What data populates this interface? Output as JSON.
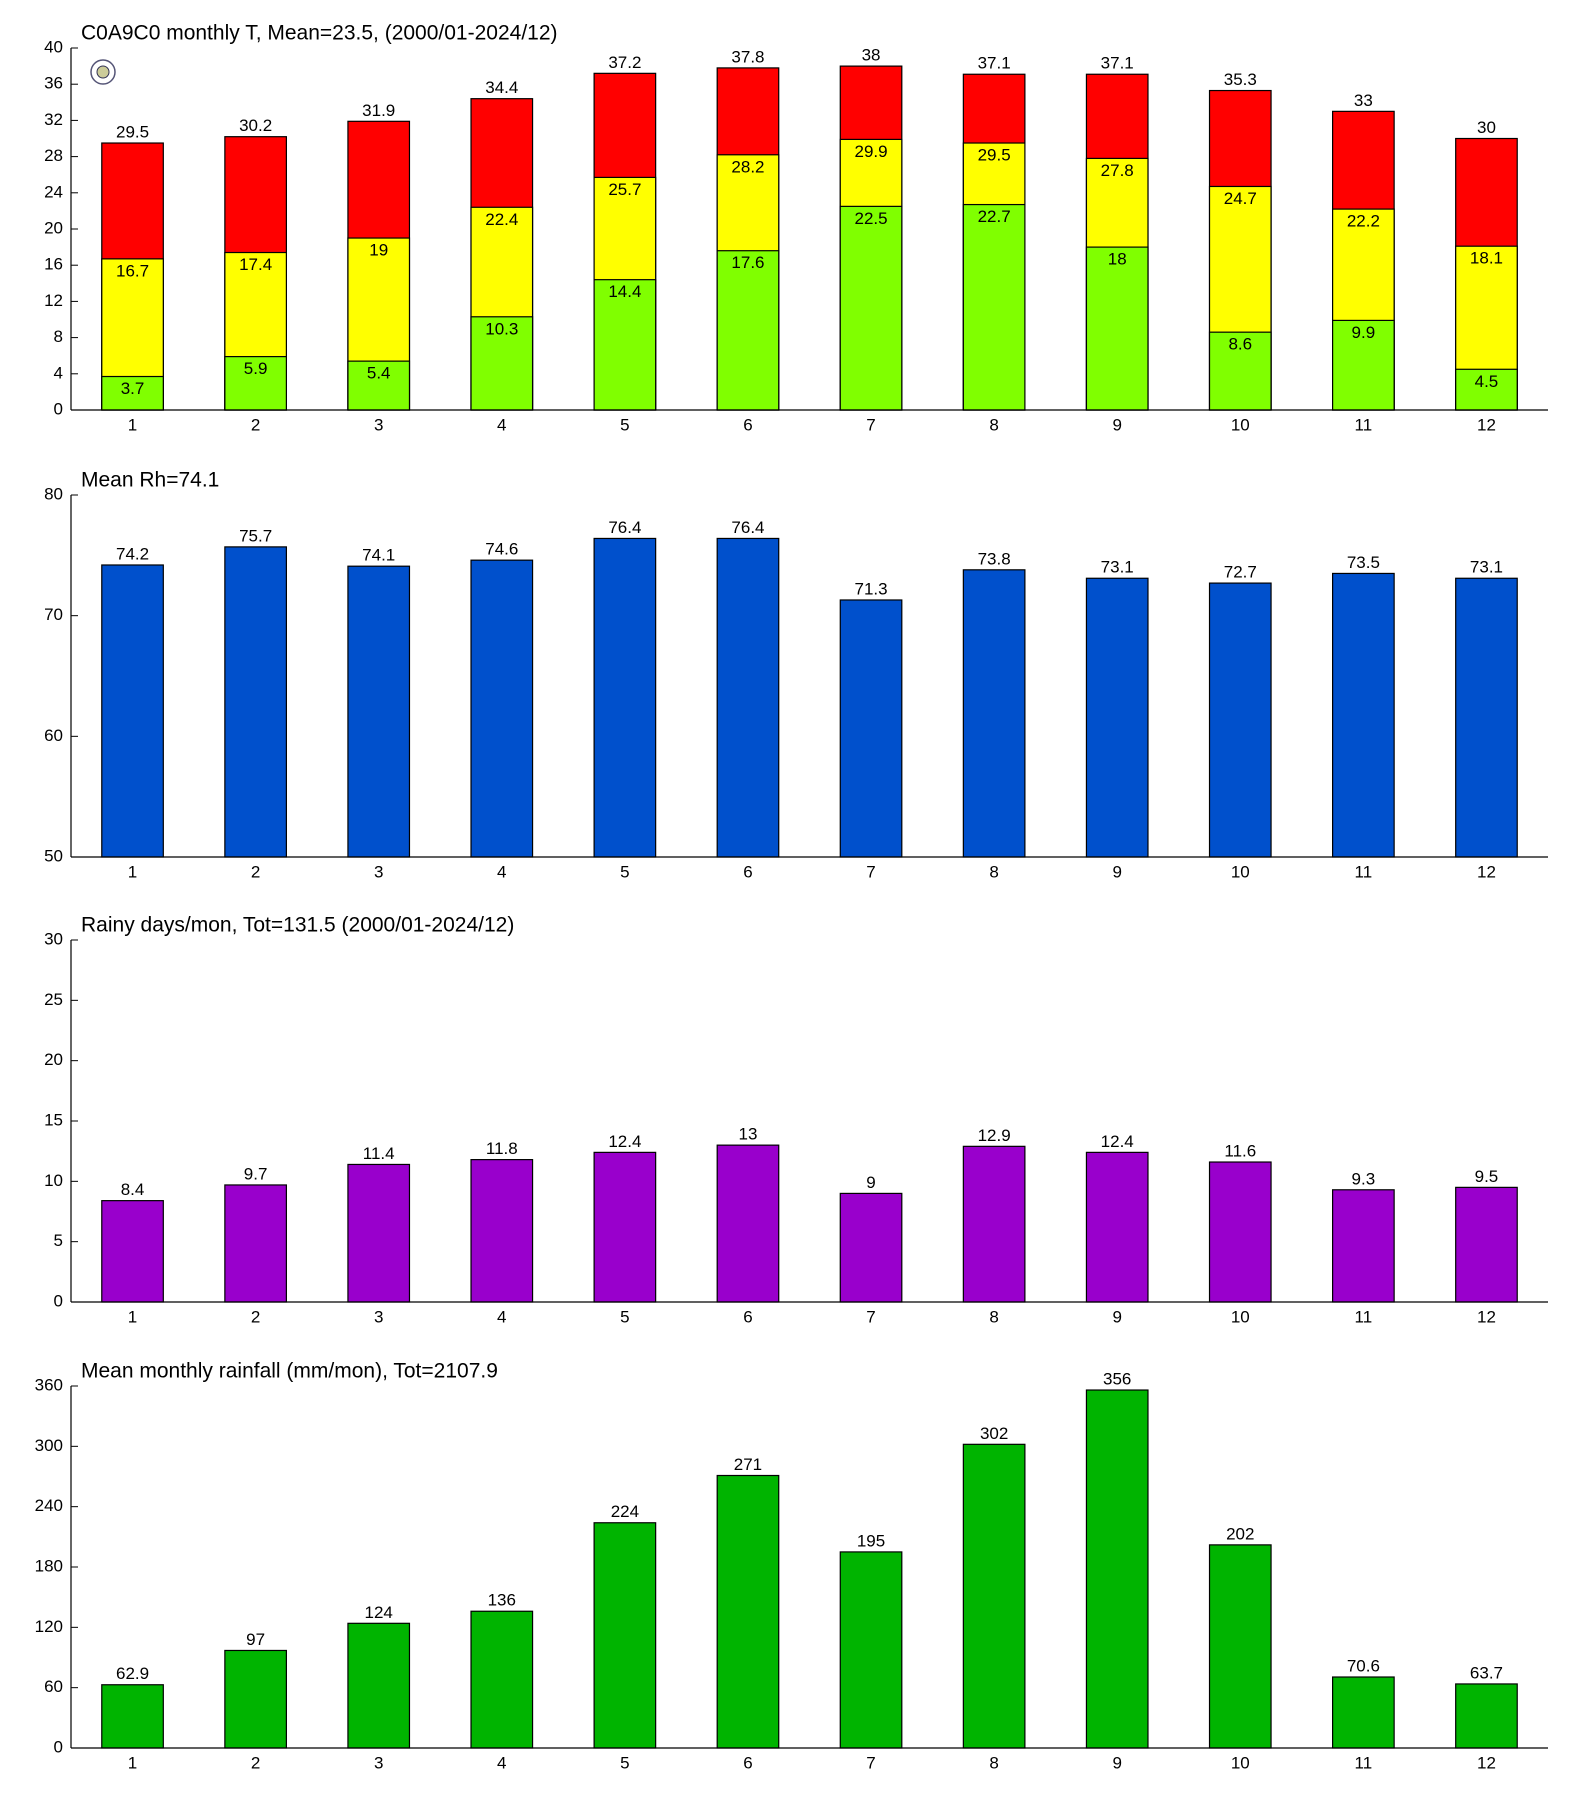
{
  "chart_data": [
    {
      "type": "bar",
      "title": "C0A9C0 monthly T, Mean=23.5, (2000/01-2024/12)",
      "categories": [
        "1",
        "2",
        "3",
        "4",
        "5",
        "6",
        "7",
        "8",
        "9",
        "10",
        "11",
        "12"
      ],
      "series": [
        {
          "color": "#ff0000",
          "values": [
            29.5,
            30.2,
            31.9,
            34.4,
            37.2,
            37.8,
            38,
            37.1,
            37.1,
            35.3,
            33,
            30
          ]
        },
        {
          "color": "#ffff00",
          "values": [
            16.7,
            17.4,
            19,
            22.4,
            25.7,
            28.2,
            29.9,
            29.5,
            27.8,
            24.7,
            22.2,
            18.1
          ]
        },
        {
          "color": "#80ff00",
          "values": [
            3.7,
            5.9,
            5.4,
            10.3,
            14.4,
            17.6,
            22.5,
            22.7,
            18,
            8.6,
            9.9,
            4.5
          ]
        }
      ],
      "ylim": [
        0,
        40
      ],
      "yticks": [
        0,
        4,
        8,
        12,
        16,
        20,
        24,
        28,
        32,
        36,
        40
      ]
    },
    {
      "type": "bar",
      "title": "Mean Rh=74.1",
      "categories": [
        "1",
        "2",
        "3",
        "4",
        "5",
        "6",
        "7",
        "8",
        "9",
        "10",
        "11",
        "12"
      ],
      "series": [
        {
          "color": "#0050cc",
          "values": [
            74.2,
            75.7,
            74.1,
            74.6,
            76.4,
            76.4,
            71.3,
            73.8,
            73.1,
            72.7,
            73.5,
            73.1
          ]
        }
      ],
      "ylim": [
        50,
        80
      ],
      "yticks": [
        50,
        60,
        70,
        80
      ]
    },
    {
      "type": "bar",
      "title": "Rainy days/mon, Tot=131.5 (2000/01-2024/12)",
      "categories": [
        "1",
        "2",
        "3",
        "4",
        "5",
        "6",
        "7",
        "8",
        "9",
        "10",
        "11",
        "12"
      ],
      "series": [
        {
          "color": "#9900cc",
          "values": [
            8.4,
            9.7,
            11.4,
            11.8,
            12.4,
            13,
            9,
            12.9,
            12.4,
            11.6,
            9.3,
            9.5
          ]
        }
      ],
      "ylim": [
        0,
        30
      ],
      "yticks": [
        0,
        5,
        10,
        15,
        20,
        25,
        30
      ]
    },
    {
      "type": "bar",
      "title": "Mean monthly rainfall (mm/mon), Tot=2107.9",
      "categories": [
        "1",
        "2",
        "3",
        "4",
        "5",
        "6",
        "7",
        "8",
        "9",
        "10",
        "11",
        "12"
      ],
      "series": [
        {
          "color": "#00b400",
          "values": [
            62.9,
            97,
            124,
            136,
            224,
            271,
            195,
            302,
            356,
            202,
            70.6,
            63.7
          ]
        }
      ],
      "ylim": [
        0,
        360
      ],
      "yticks": [
        0,
        60,
        120,
        180,
        240,
        300,
        360
      ]
    }
  ]
}
